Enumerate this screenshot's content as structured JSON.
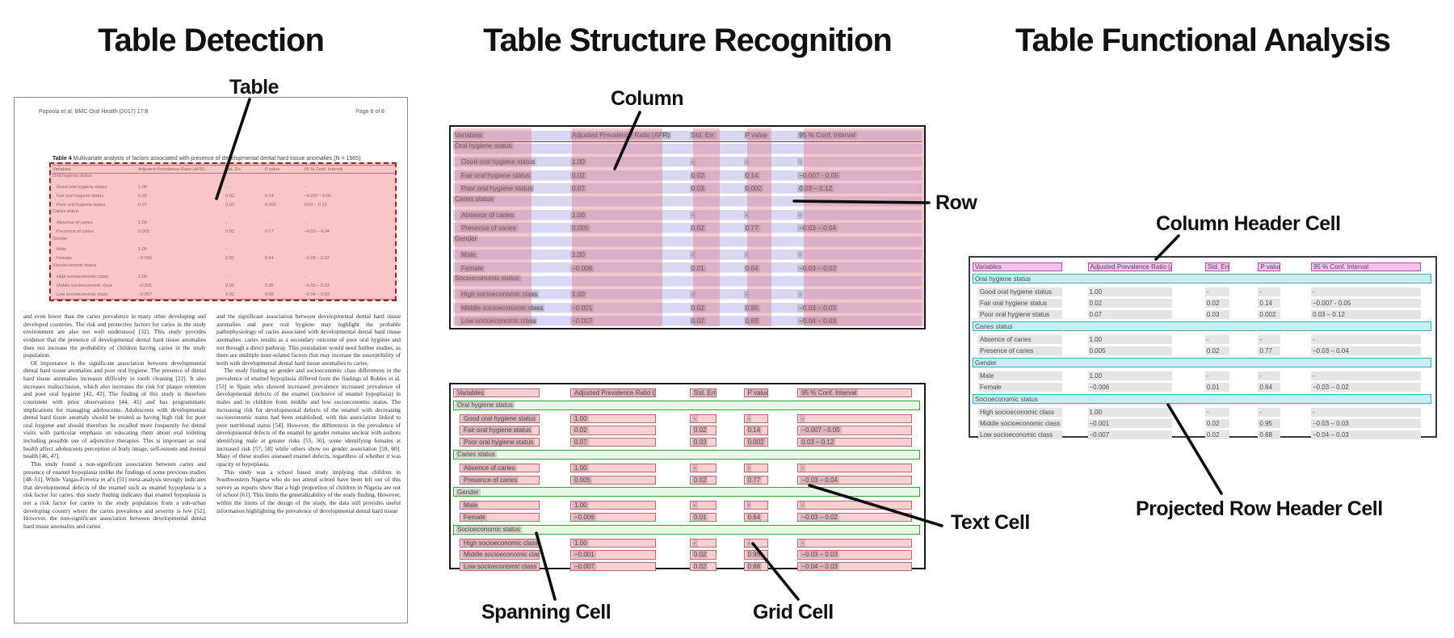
{
  "titles": {
    "detection": "Table Detection",
    "structure": "Table Structure Recognition",
    "functional": "Table Functional Analysis"
  },
  "annotations": {
    "table": "Table",
    "column": "Column",
    "row": "Row",
    "spanning_cell": "Spanning Cell",
    "grid_cell": "Grid Cell",
    "text_cell": "Text Cell",
    "column_header_cell": "Column Header Cell",
    "projected_row_header_cell": "Projected Row Header Cell"
  },
  "document": {
    "header_left": "Popoola et al. BMC Oral Health (2017) 17:8",
    "header_right": "Page 6 of 8",
    "caption_label": "Table 4",
    "caption_text": " Multivariate analysis of factors associated with presence of developmental dental hard tissue anomalies (N = 1565)",
    "body_col1": [
      "and even lower than the caries prevalence in many other developing and developed countries. The risk and protective factors for caries in the study environment are also not well understood [32]. This study provides evidence that the presence of developmental dental hard tissue anomalies does not increase the probability of children having caries in the study population.",
      "Of importance is the significant association between developmental dental hard tissue anomalies and poor oral hygiene. The presence of dental hard tissue anomalies increases difficulty in tooth cleaning [22]. It also increases malocclusion, which also increases the risk for plaque retention and poor oral hygiene [42, 43]. The finding of this study is therefore consistent with prior observations [44, 45] and has programmatic implications for managing adolescents. Adolescents with developmental dental hard tissue anomaly should be treated as having high risk for poor oral hygiene and should therefore be recalled more frequently for dental visits with particular emphasis on educating them about oral toileting including possible use of adjunctive therapies. This is important as oral health affect adolescents perception of body image, self-esteem and mental health [46, 47].",
      "This study found a non-significant association between caries and presence of enamel hypoplasia unlike the findings of some previous studies [48–51]. While Vargas-Ferreira et al's [51] meta-analysis strongly indicates that developmental defects of the enamel such as enamel hypoplasia is a risk factor for caries, this study finding indicates that enamel hypoplasia is not a risk factor for caries in the study population from a sub-urban developing country where the caries prevalence and severity is low [52]. However, the non-significant association between developmental dental hard tissue anomalies and caries"
    ],
    "body_col2": [
      "and the significant association between developmental dental hard tissue anomalies and poor oral hygiene may highlight the probable pathophysiology of caries associated with developmental dental hard tissue anomalies: caries results as a secondary outcome of poor oral hygiene and not through a direct pathway. This postulation would need further studies, as there are multiple inter-related factors that may increase the susceptibility of teeth with developmental dental hard tissue anomalies to caries.",
      "The study finding on gender and socioeconomic class differences in the prevalence of enamel hypoplasia differed from the findings of Robles et al. [53] in Spain who showed increased prevalence increased prevalence of developmental defects of the enamel (inclusive of enamel hypoplasia) in males and in children from middle and low socioeconomic status. The increasing risk for developmental defects of the enamel with decreasing socioeconomic status had been established, with this association linked to poor nutritional status [54]. However, the differences in the prevalence of developmental defects of the enamel by gender remains unclear with authors identifying male at greater risks [55, 56], some identifying females at increased risk [57, 58] while others show no gender association [59, 60]. Many of these studies assessed enamel defects, regardless of whether it was opacity or hypoplasia.",
      "This study was a school based study implying that children in Southwestern Nigeria who do not attend school have been left out of this survey as reports show that a high proportion of children in Nigeria are out of school [61]. This limits the generalizability of the study finding. However, within the limits of the design of the study, the data still provides useful information highlighting the prevalence of developmental dental hard tissue"
    ]
  },
  "table": {
    "columns": [
      "Variables",
      "Adjusted Prevalence Ratio (APR)",
      "Std. Err.",
      "P value",
      "95 % Conf. Interval"
    ],
    "rows": [
      {
        "type": "section",
        "label": "Oral hygiene status"
      },
      {
        "type": "data",
        "label": "Good oral hygiene status",
        "apr": "1.00",
        "se": "-",
        "p": "-",
        "ci": "-"
      },
      {
        "type": "data",
        "label": "Fair oral hygiene status",
        "apr": "0.02",
        "se": "0.02",
        "p": "0.14",
        "ci": "−0.007 - 0.05"
      },
      {
        "type": "data",
        "label": "Poor oral hygiene status",
        "apr": "0.07",
        "se": "0.03",
        "p": "0.002",
        "ci": "0.03 – 0.12"
      },
      {
        "type": "section",
        "label": "Caries status"
      },
      {
        "type": "data",
        "label": "Absence of caries",
        "apr": "1.00",
        "se": "-",
        "p": "-",
        "ci": "-"
      },
      {
        "type": "data",
        "label": "Presence of caries",
        "apr": "0.005",
        "se": "0.02",
        "p": "0.77",
        "ci": "−0.03 – 0.04"
      },
      {
        "type": "section",
        "label": "Gender"
      },
      {
        "type": "data",
        "label": "Male",
        "apr": "1.00",
        "se": "-",
        "p": "-",
        "ci": "-"
      },
      {
        "type": "data",
        "label": "Female",
        "apr": "−0.006",
        "se": "0.01",
        "p": "0.64",
        "ci": "−0.03 – 0.02"
      },
      {
        "type": "section",
        "label": "Socioeconomic status"
      },
      {
        "type": "data",
        "label": "High socioeconomic class",
        "apr": "1.00",
        "se": "-",
        "p": "-",
        "ci": "-"
      },
      {
        "type": "data",
        "label": "Middle socioeconomic class",
        "apr": "−0.001",
        "se": "0.02",
        "p": "0.95",
        "ci": "−0.03 – 0.03"
      },
      {
        "type": "data",
        "label": "Low socioeconomic class",
        "apr": "−0.007",
        "se": "0.02",
        "p": "0.68",
        "ci": "−0.04 – 0.03"
      }
    ]
  },
  "colors": {
    "detection_fill": "#F0767C",
    "detection_border": "#A02020",
    "row_band": "#8E8EDA",
    "column_band": "#DD6E80",
    "grid_cell_fill": "#F7D0D2",
    "grid_cell_border": "#BB6A70",
    "spanning_cell_fill": "#E9F7EA",
    "spanning_cell_border": "#35A23B",
    "column_header_fill": "#F6C2EE",
    "column_header_border": "#C243C2",
    "projected_row_header_fill": "#C9EDF2",
    "projected_row_header_border": "#2FB3C0",
    "text_cell_fill": "#E5E5E5"
  }
}
